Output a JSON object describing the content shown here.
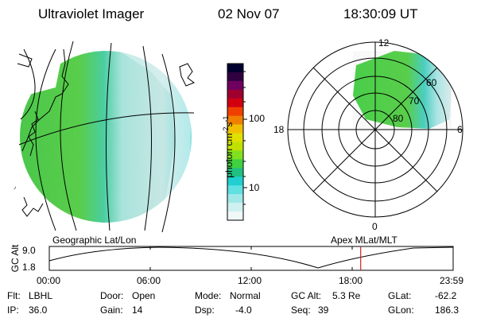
{
  "header": {
    "instrument": "Ultraviolet Imager",
    "date": "02 Nov 07",
    "time": "18:30:09 UT"
  },
  "left_panel": {
    "caption": "Geographic Lat/Lon"
  },
  "colorbar": {
    "unit_label": "photon cm",
    "unit_exp1": "-2",
    "unit_mid": "s",
    "unit_exp2": "-1",
    "tick_100": "100",
    "tick_10": "10",
    "colors": [
      "#000030",
      "#300040",
      "#700060",
      "#a00030",
      "#d00010",
      "#f04000",
      "#f08000",
      "#f0c000",
      "#e0e000",
      "#c0e000",
      "#80e020",
      "#40d040",
      "#20c080",
      "#20d0d0",
      "#60e0e0",
      "#a0e8e8",
      "#d0f0f0",
      "#f0f8f8"
    ]
  },
  "right_panel": {
    "caption": "Apex MLat/MLT",
    "mlt_labels": {
      "top": "12",
      "left": "18",
      "right": "6",
      "bottom": "0"
    },
    "lat_labels": [
      "60",
      "70",
      "80"
    ]
  },
  "timeline": {
    "ylabel": "GC Alt",
    "ymax": "9.0",
    "ymin": "1.8",
    "ticks": [
      "00:00",
      "06:00",
      "12:00",
      "18:00",
      "23:59"
    ],
    "marker_time_fraction": 0.771,
    "marker_color": "#cc2222"
  },
  "status": {
    "filter_label": "Flt:",
    "filter_value": "LBHL",
    "ip_label": "IP:",
    "ip_value": "36.0",
    "door_label": "Door:",
    "door_value": "Open",
    "gain_label": "Gain:",
    "gain_value": "14",
    "mode_label": "Mode:",
    "mode_value": "Normal",
    "dsp_label": "Dsp:",
    "dsp_value": "-4.0",
    "gcalt_label": "GC Alt:",
    "gcalt_value": "5.3 Re",
    "seq_label": "Seq:",
    "seq_value": "39",
    "glat_label": "GLat:",
    "glat_value": "-62.2",
    "glon_label": "GLon:",
    "glon_value": "186.3"
  }
}
